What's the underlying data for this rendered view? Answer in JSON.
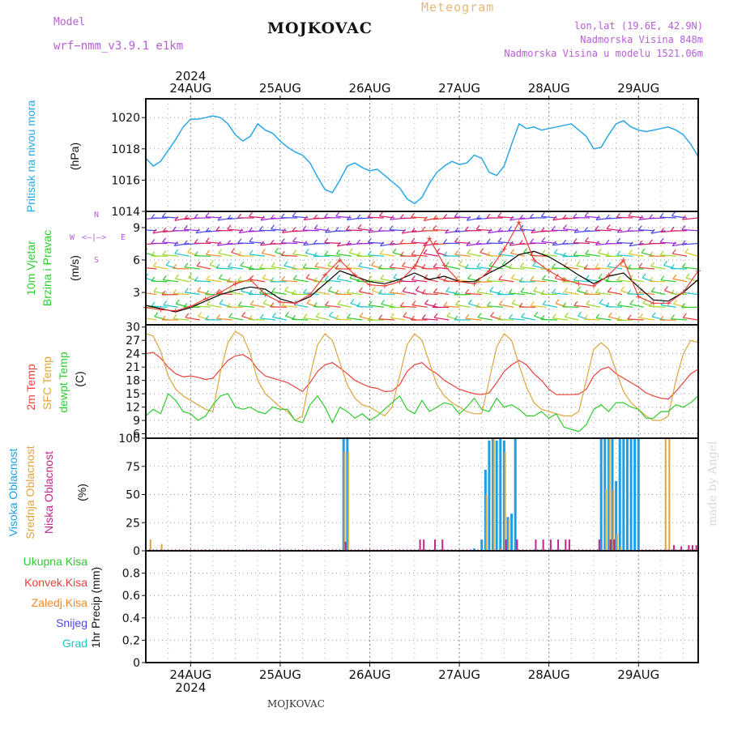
{
  "header": {
    "model_label": "Model",
    "model_name": "wrf−nmm_v3.9.1  e1km",
    "station": "MOJKOVAC",
    "meteogram": "Meteogram",
    "lonlat": "lon,lat (19.6E, 42.9N)",
    "altitude": "Nadmorska Visina 848m",
    "model_altitude": "Nadmorska Visina u modelu 1521.06m"
  },
  "footer": {
    "station": "MOJKOVAC",
    "watermark": "made by Angel"
  },
  "colors": {
    "pressure": "#2aa8e6",
    "temp2m": "#e8423a",
    "sfc": "#e0a43f",
    "dew": "#2fcc2f",
    "high_cloud": "#1e9ee6",
    "mid_cloud": "#e0a43f",
    "low_cloud": "#c0268a",
    "total_precip": "#2fcc2f",
    "conv_precip": "#e8423a",
    "freezing": "#f08a2a",
    "snow": "#4a48e6",
    "hail": "#1fc7c7",
    "model_header": "#b75fd6",
    "wind_axis": "#b75fd6"
  },
  "labels": {
    "pressure": [
      "Pritisak na nivou mora"
    ],
    "pressure_unit": "(hPa)",
    "wind": [
      "10m Vjetar",
      "Brzina i Pravac"
    ],
    "wind_unit": "(m/s)",
    "wind_compass": {
      "n": "N",
      "w": "W",
      "e": "E",
      "s": "S",
      "arrows": "<—|—>"
    },
    "temp": [
      "2m Temp",
      "SFC Temp",
      "dewpt Temp"
    ],
    "temp_unit": "(C)",
    "cloud": [
      "Visoka Oblacnost",
      "Srednja Oblacnost",
      "Niska Oblacnost"
    ],
    "cloud_unit": "(%)",
    "precip_legend": [
      "Ukupna Kisa",
      "Konvek.Kisa",
      "Zaledj.Kisa",
      "Snijeg",
      "Grad"
    ],
    "precip_unit": "1hr Precip (mm)"
  },
  "axis": {
    "year": "2024",
    "days": [
      "24AUG",
      "25AUG",
      "26AUG",
      "27AUG",
      "28AUG",
      "29AUG"
    ],
    "hour_range": [
      0,
      148
    ]
  },
  "chart_data": [
    {
      "type": "line",
      "title": "",
      "ylabel": "Pritisak na nivou mora (hPa)",
      "ylim": [
        1014,
        1021.2
      ],
      "yticks": [
        1014,
        1016,
        1018,
        1020
      ],
      "grid": true,
      "x_unit": "hours after 23AUG 12:00",
      "series": [
        {
          "name": "Pritisak na nivou mora",
          "color": "#2aa8e6",
          "x": [
            0,
            2,
            4,
            6,
            8,
            10,
            12,
            14,
            16,
            18,
            20,
            22,
            24,
            26,
            28,
            30,
            32,
            34,
            36,
            38,
            40,
            42,
            44,
            46,
            48,
            50,
            52,
            54,
            56,
            58,
            60,
            62,
            64,
            66,
            68,
            70,
            72,
            74,
            76,
            78,
            80,
            82,
            84,
            86,
            88,
            90,
            92,
            94,
            96,
            98,
            100,
            102,
            104,
            106,
            108,
            110,
            112,
            114,
            116,
            118,
            120,
            122,
            124,
            126,
            128,
            130,
            132,
            134,
            136,
            138,
            140,
            142,
            144,
            146,
            148
          ],
          "y": [
            1017.4,
            1016.9,
            1017.2,
            1017.9,
            1018.6,
            1019.4,
            1019.9,
            1019.9,
            1020.0,
            1020.1,
            1020.0,
            1019.6,
            1018.9,
            1018.5,
            1018.8,
            1019.6,
            1019.2,
            1019.0,
            1018.5,
            1018.1,
            1017.8,
            1017.6,
            1017.1,
            1016.2,
            1015.4,
            1015.2,
            1016.0,
            1016.9,
            1017.1,
            1016.8,
            1016.6,
            1016.7,
            1016.3,
            1015.9,
            1015.5,
            1014.8,
            1014.5,
            1014.9,
            1015.8,
            1016.5,
            1016.9,
            1017.2,
            1017.0,
            1017.1,
            1017.6,
            1017.4,
            1016.5,
            1016.3,
            1016.9,
            1018.3,
            1019.6,
            1019.3,
            1019.4,
            1019.2,
            1019.3,
            1019.4,
            1019.5,
            1019.6,
            1019.2,
            1018.8,
            1018.0,
            1018.1,
            1018.9,
            1019.6,
            1019.8,
            1019.4,
            1019.2,
            1019.1,
            1019.2,
            1019.3,
            1019.4,
            1019.2,
            1018.9,
            1018.3,
            1017.5
          ]
        }
      ]
    },
    {
      "type": "line",
      "title": "",
      "ylabel": "10m Vjetar Brzina i Pravac (m/s)",
      "ylim": [
        0,
        10.5
      ],
      "yticks": [
        3,
        6,
        9
      ],
      "grid": true,
      "series": [
        {
          "name": "Brzina",
          "color": "#000000",
          "x": [
            0,
            4,
            8,
            12,
            16,
            20,
            24,
            28,
            32,
            36,
            40,
            44,
            48,
            52,
            56,
            60,
            64,
            68,
            72,
            76,
            80,
            84,
            88,
            92,
            96,
            100,
            104,
            108,
            112,
            116,
            120,
            124,
            128,
            132,
            136,
            140,
            144,
            148
          ],
          "y": [
            1.8,
            1.5,
            1.2,
            1.6,
            2.2,
            2.8,
            3.2,
            3.5,
            3.3,
            2.4,
            2.0,
            2.6,
            3.8,
            5.0,
            4.5,
            4.0,
            3.8,
            4.2,
            4.8,
            4.2,
            4.5,
            4.0,
            4.0,
            4.8,
            5.5,
            6.5,
            6.8,
            6.3,
            5.5,
            4.6,
            3.8,
            4.5,
            4.8,
            3.5,
            2.3,
            2.2,
            3.0,
            4.2
          ]
        },
        {
          "name": "Udar",
          "color": "#e8423a",
          "x": [
            0,
            4,
            8,
            12,
            16,
            20,
            24,
            28,
            32,
            36,
            40,
            44,
            48,
            52,
            56,
            60,
            64,
            68,
            72,
            76,
            80,
            84,
            88,
            92,
            96,
            100,
            104,
            108,
            112,
            116,
            120,
            124,
            128,
            132,
            136,
            140,
            144,
            148
          ],
          "y": [
            1.6,
            1.4,
            1.3,
            1.7,
            2.4,
            3.0,
            3.8,
            4.2,
            2.8,
            2.1,
            2.0,
            2.8,
            4.6,
            6.0,
            4.6,
            3.7,
            3.6,
            4.0,
            5.4,
            8.0,
            5.5,
            4.0,
            3.8,
            5.0,
            7.0,
            9.5,
            6.0,
            5.0,
            4.2,
            3.8,
            3.6,
            4.6,
            6.0,
            2.6,
            2.0,
            2.0,
            3.0,
            5.0
          ]
        }
      ]
    },
    {
      "type": "line",
      "title": "",
      "ylabel": "Temp (C)",
      "ylim": [
        5,
        30.5
      ],
      "yticks": [
        6,
        9,
        12,
        15,
        18,
        21,
        24,
        27,
        30
      ],
      "grid": true,
      "series": [
        {
          "name": "2m Temp",
          "color": "#e8423a",
          "x": [
            0,
            2,
            4,
            6,
            8,
            10,
            12,
            14,
            16,
            18,
            20,
            22,
            24,
            26,
            28,
            30,
            32,
            34,
            36,
            38,
            40,
            42,
            44,
            46,
            48,
            50,
            52,
            54,
            56,
            58,
            60,
            62,
            64,
            66,
            68,
            70,
            72,
            74,
            76,
            78,
            80,
            82,
            84,
            86,
            88,
            90,
            92,
            94,
            96,
            98,
            100,
            102,
            104,
            106,
            108,
            110,
            112,
            114,
            116,
            118,
            120,
            122,
            124,
            126,
            128,
            130,
            132,
            134,
            136,
            138,
            140,
            142,
            144,
            146,
            148
          ],
          "y": [
            24.0,
            24.3,
            23.0,
            21.0,
            19.5,
            18.8,
            19.0,
            18.7,
            18.2,
            18.5,
            20.5,
            22.5,
            23.5,
            23.8,
            22.8,
            20.5,
            19.0,
            18.5,
            18.0,
            17.5,
            16.5,
            15.5,
            17.5,
            20.0,
            21.5,
            22.0,
            20.8,
            19.5,
            18.0,
            17.2,
            16.5,
            16.2,
            15.5,
            15.6,
            17.0,
            20.0,
            21.5,
            22.0,
            20.5,
            19.5,
            18.0,
            17.0,
            16.0,
            15.5,
            15.0,
            14.8,
            15.2,
            17.5,
            20.0,
            21.5,
            22.5,
            21.5,
            19.5,
            18.0,
            16.0,
            14.8,
            14.8,
            14.8,
            14.9,
            16.0,
            19.0,
            20.5,
            21.0,
            19.5,
            18.5,
            17.5,
            16.5,
            15.2,
            14.5,
            14.0,
            13.8,
            15.5,
            17.5,
            19.5,
            20.5
          ]
        },
        {
          "name": "SFC Temp",
          "color": "#e0a43f",
          "x": [
            0,
            2,
            4,
            6,
            8,
            10,
            12,
            14,
            16,
            18,
            20,
            22,
            24,
            26,
            28,
            30,
            32,
            34,
            36,
            38,
            40,
            42,
            44,
            46,
            48,
            50,
            52,
            54,
            56,
            58,
            60,
            62,
            64,
            66,
            68,
            70,
            72,
            74,
            76,
            78,
            80,
            82,
            84,
            86,
            88,
            90,
            92,
            94,
            96,
            98,
            100,
            102,
            104,
            106,
            108,
            110,
            112,
            114,
            116,
            118,
            120,
            122,
            124,
            126,
            128,
            130,
            132,
            134,
            136,
            138,
            140,
            142,
            144,
            146,
            148
          ],
          "y": [
            28.5,
            28.0,
            24.5,
            19.0,
            16.0,
            14.5,
            13.5,
            12.5,
            11.5,
            11.0,
            20.0,
            26.5,
            29.0,
            28.0,
            24.0,
            18.0,
            15.0,
            13.5,
            12.0,
            11.0,
            9.0,
            10.0,
            19.0,
            26.0,
            28.5,
            27.0,
            22.0,
            17.0,
            14.0,
            12.5,
            12.0,
            11.0,
            10.0,
            12.0,
            19.0,
            26.0,
            28.5,
            27.0,
            22.0,
            17.0,
            14.5,
            13.0,
            12.0,
            11.0,
            10.5,
            10.5,
            18.0,
            25.5,
            28.5,
            27.0,
            21.5,
            16.5,
            13.0,
            11.5,
            11.0,
            10.5,
            10.0,
            10.0,
            11.0,
            18.0,
            25.0,
            26.5,
            25.0,
            20.0,
            15.5,
            13.0,
            11.5,
            10.0,
            9.0,
            9.0,
            10.0,
            18.0,
            24.0,
            27.0,
            26.5
          ]
        },
        {
          "name": "dewpt Temp",
          "color": "#2fcc2f",
          "x": [
            0,
            2,
            4,
            6,
            8,
            10,
            12,
            14,
            16,
            18,
            20,
            22,
            24,
            26,
            28,
            30,
            32,
            34,
            36,
            38,
            40,
            42,
            44,
            46,
            48,
            50,
            52,
            54,
            56,
            58,
            60,
            62,
            64,
            66,
            68,
            70,
            72,
            74,
            76,
            78,
            80,
            82,
            84,
            86,
            88,
            90,
            92,
            94,
            96,
            98,
            100,
            102,
            104,
            106,
            108,
            110,
            112,
            114,
            116,
            118,
            120,
            122,
            124,
            126,
            128,
            130,
            132,
            134,
            136,
            138,
            140,
            142,
            144,
            146,
            148
          ],
          "y": [
            10.0,
            11.5,
            10.5,
            15.0,
            13.5,
            11.0,
            10.5,
            9.0,
            10.0,
            12.5,
            14.5,
            15.0,
            12.0,
            11.5,
            12.0,
            11.0,
            10.5,
            12.0,
            11.5,
            11.5,
            9.0,
            8.5,
            12.5,
            14.5,
            12.0,
            8.5,
            12.0,
            11.0,
            9.5,
            10.5,
            9.0,
            10.0,
            11.5,
            13.0,
            14.5,
            11.5,
            10.5,
            13.5,
            11.0,
            12.0,
            13.0,
            12.5,
            10.5,
            12.0,
            14.0,
            11.5,
            11.0,
            14.0,
            12.0,
            12.5,
            11.5,
            10.0,
            10.0,
            11.0,
            9.5,
            10.5,
            7.5,
            7.0,
            6.5,
            8.0,
            11.5,
            12.5,
            11.0,
            13.0,
            13.0,
            12.0,
            11.5,
            9.5,
            9.5,
            11.0,
            11.0,
            12.5,
            12.0,
            13.0,
            14.5
          ]
        }
      ]
    },
    {
      "type": "bar",
      "title": "",
      "ylabel": "Oblacnost (%)",
      "ylim": [
        0,
        100
      ],
      "yticks": [
        0,
        25,
        50,
        75,
        100
      ],
      "grid": true,
      "series": [
        {
          "name": "Visoka Oblacnost",
          "color": "#1e9ee6",
          "x": [
            53,
            54,
            88,
            90,
            91,
            92,
            93,
            94,
            95,
            96,
            97,
            98,
            99,
            114,
            122,
            123,
            124,
            125,
            126,
            127,
            128,
            129,
            130,
            131,
            132
          ],
          "y": [
            100,
            100,
            2,
            10,
            72,
            98,
            100,
            98,
            100,
            98,
            30,
            33,
            100,
            0,
            100,
            100,
            100,
            100,
            62,
            100,
            100,
            100,
            100,
            100,
            100
          ]
        },
        {
          "name": "Srednja Oblacnost",
          "color": "#e0a43f",
          "x": [
            1,
            4,
            53,
            54,
            91,
            93,
            95,
            96,
            97,
            123,
            124,
            125,
            126,
            127,
            139,
            140
          ],
          "y": [
            10,
            6,
            88,
            88,
            50,
            100,
            2,
            88,
            28,
            55,
            100,
            54,
            15,
            4,
            100,
            100
          ]
        },
        {
          "name": "Niska Oblacnost",
          "color": "#c0268a",
          "x": [
            53,
            73,
            74,
            77,
            79,
            96,
            99,
            104,
            106,
            108,
            110,
            112,
            113,
            121,
            124,
            125,
            141,
            143,
            145,
            146,
            147
          ],
          "y": [
            8,
            10,
            10,
            10,
            10,
            10,
            10,
            10,
            10,
            10,
            10,
            10,
            10,
            10,
            10,
            10,
            5,
            4,
            5,
            5,
            5
          ]
        }
      ]
    },
    {
      "type": "bar",
      "title": "",
      "ylabel": "1hr Precip (mm)",
      "ylim": [
        0,
        1.0
      ],
      "yticks": [
        0,
        0.2,
        0.4,
        0.6,
        0.8
      ],
      "grid": true,
      "series": [
        {
          "name": "Ukupna Kisa",
          "color": "#2fcc2f",
          "x": [],
          "y": []
        },
        {
          "name": "Konvek.Kisa",
          "color": "#e8423a",
          "x": [],
          "y": []
        },
        {
          "name": "Zaledj.Kisa",
          "color": "#f08a2a",
          "x": [],
          "y": []
        },
        {
          "name": "Snijeg",
          "color": "#4a48e6",
          "x": [],
          "y": []
        },
        {
          "name": "Grad",
          "color": "#1fc7c7",
          "x": [],
          "y": []
        }
      ]
    }
  ]
}
